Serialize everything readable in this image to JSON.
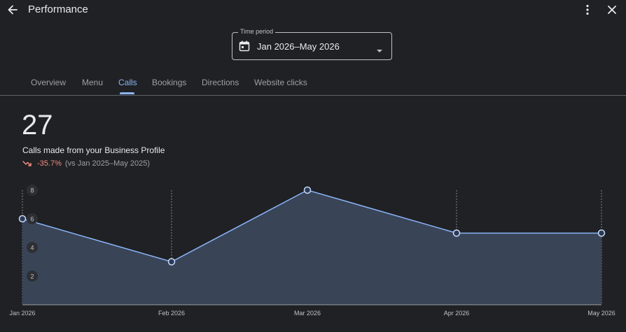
{
  "header": {
    "title": "Performance",
    "back_icon": "arrow-back-icon",
    "more_icon": "more-vert-icon",
    "close_icon": "close-icon"
  },
  "time_period": {
    "label": "Time period",
    "value": "Jan 2026–May 2026",
    "icon": "calendar-icon"
  },
  "tabs": [
    {
      "label": "Overview",
      "active": false
    },
    {
      "label": "Menu",
      "active": false
    },
    {
      "label": "Calls",
      "active": true
    },
    {
      "label": "Bookings",
      "active": false
    },
    {
      "label": "Directions",
      "active": false
    },
    {
      "label": "Website clicks",
      "active": false
    }
  ],
  "summary": {
    "total": "27",
    "description": "Calls made from your Business Profile",
    "change": "-35.7%",
    "comparison": "(vs Jan 2025–May 2025)",
    "trend_icon": "trending-down-icon"
  },
  "colors": {
    "background": "#202124",
    "accent": "#8ab4f8",
    "negative": "#f28b82",
    "area_fill": "#394457"
  },
  "chart_data": {
    "type": "area",
    "x": [
      "Jan 2026",
      "Feb 2026",
      "Mar 2026",
      "Apr 2026",
      "May 2026"
    ],
    "series": [
      {
        "values": [
          6,
          3,
          8,
          5,
          5
        ]
      }
    ],
    "yticks": [
      2,
      4,
      6,
      8
    ],
    "ylim": [
      0,
      8
    ],
    "grid": "dashed vertical lines at each month"
  }
}
